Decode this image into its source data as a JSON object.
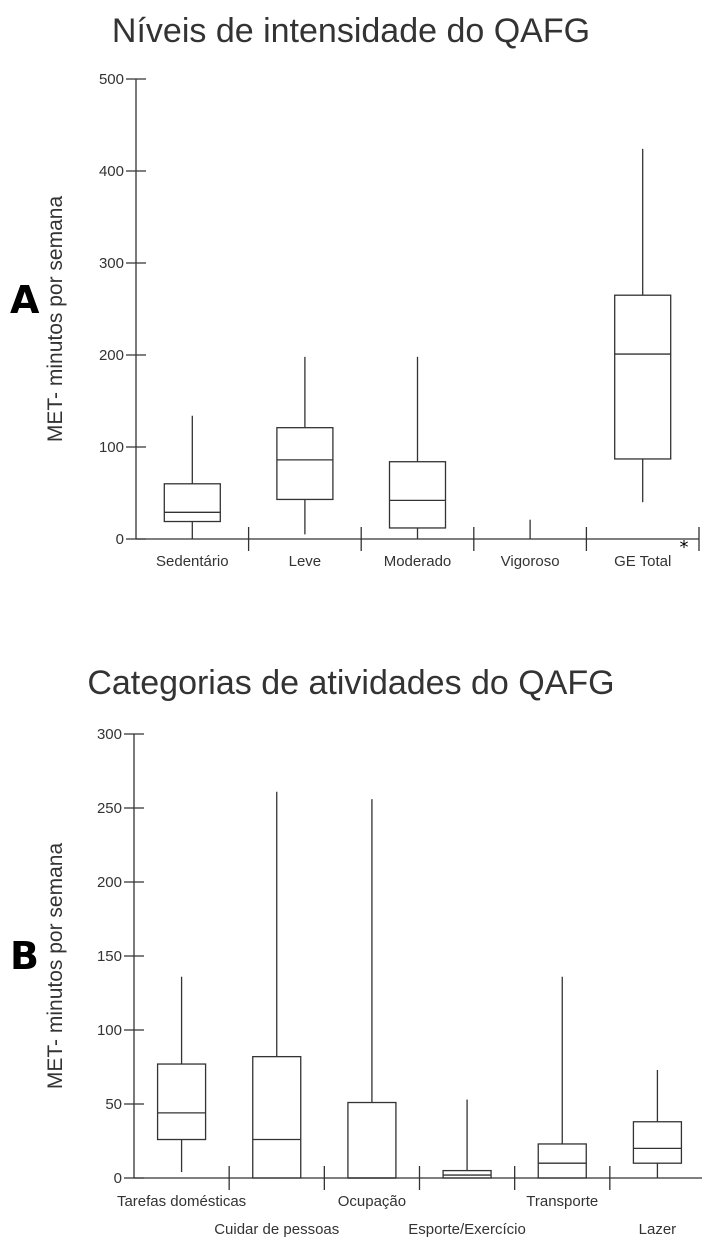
{
  "chart_data": [
    {
      "panel": "A",
      "type": "boxplot",
      "title": "Níveis de intensidade do QAFG",
      "ylabel": "MET- minutos por semana",
      "ylim": [
        0,
        500
      ],
      "yticks": [
        "0",
        "100",
        "200",
        "300",
        "400",
        "500"
      ],
      "categories": [
        "Sedentário",
        "Leve",
        "Moderado",
        "Vigoroso",
        "GE Total"
      ],
      "boxes": [
        {
          "label": "Sedentário",
          "min": 0,
          "q1": 19,
          "median": 29,
          "q3": 60,
          "max": 134
        },
        {
          "label": "Leve",
          "min": 5,
          "q1": 43,
          "median": 86,
          "q3": 121,
          "max": 198
        },
        {
          "label": "Moderado",
          "min": 0,
          "q1": 12,
          "median": 42,
          "q3": 84,
          "max": 198
        },
        {
          "label": "Vigoroso",
          "min": 0,
          "q1": 0,
          "median": 0,
          "q3": 0,
          "max": 21
        },
        {
          "label": "GE Total",
          "min": 40,
          "q1": 87,
          "median": 201,
          "q3": 265,
          "max": 424
        }
      ],
      "annotation": "*"
    },
    {
      "panel": "B",
      "type": "boxplot",
      "title": "Categorias de atividades do QAFG",
      "ylabel": "MET- minutos por semana",
      "ylim": [
        0,
        300
      ],
      "yticks": [
        "0",
        "50",
        "100",
        "150",
        "200",
        "250",
        "300"
      ],
      "categories": [
        "Tarefas domésticas",
        "Cuidar de pessoas",
        "Ocupação",
        "Esporte/Exercício",
        "Transporte",
        "Lazer"
      ],
      "boxes": [
        {
          "label": "Tarefas domésticas",
          "min": 4,
          "q1": 26,
          "median": 44,
          "q3": 77,
          "max": 136
        },
        {
          "label": "Cuidar de pessoas",
          "min": 0,
          "q1": 0,
          "median": 26,
          "q3": 82,
          "max": 261
        },
        {
          "label": "Ocupação",
          "min": 0,
          "q1": 0,
          "median": 0,
          "q3": 51,
          "max": 256
        },
        {
          "label": "Esporte/Exercício",
          "min": 0,
          "q1": 0,
          "median": 2,
          "q3": 5,
          "max": 53
        },
        {
          "label": "Transporte",
          "min": 0,
          "q1": 0,
          "median": 10,
          "q3": 23,
          "max": 136
        },
        {
          "label": "Lazer",
          "min": 0,
          "q1": 10,
          "median": 20,
          "q3": 38,
          "max": 73
        }
      ]
    }
  ]
}
